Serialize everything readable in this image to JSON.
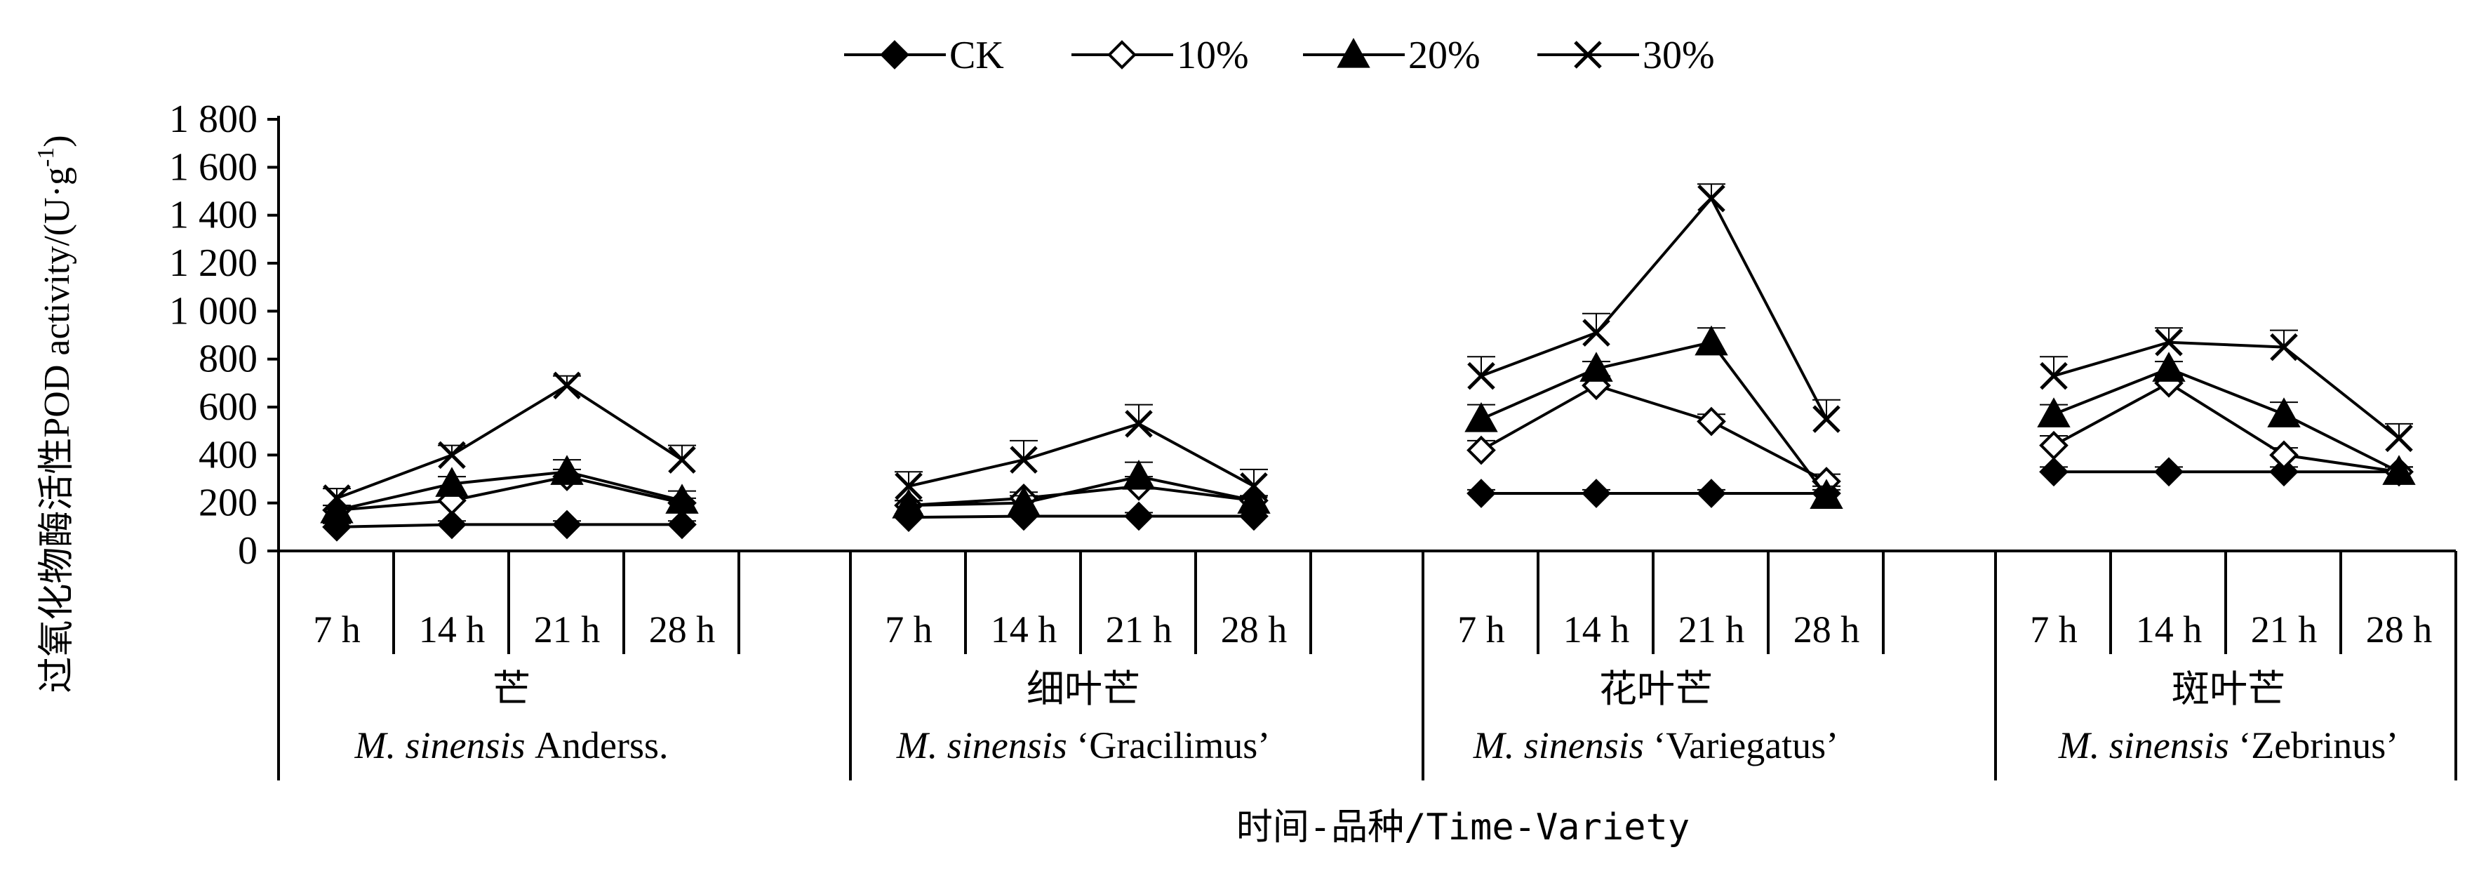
{
  "chart_data": {
    "type": "line",
    "ylabel": "过氧化物酶活性POD activity/(U·g",
    "ylabel_sup": "-1",
    "ylabel_close": ")",
    "xlabel": "时间-品种/Time-Variety",
    "ylim": [
      0,
      1800
    ],
    "yticks": [
      "0",
      "200",
      "400",
      "600",
      "800",
      "1 000",
      "1 200",
      "1 400",
      "1 600",
      "1 800"
    ],
    "time_labels": [
      "7 h",
      "14 h",
      "21 h",
      "28 h"
    ],
    "legend_position": "top-center",
    "groups": [
      {
        "name_cn": "芒",
        "name_latin_italic": "M. sinensis",
        "name_rest": "Anderss."
      },
      {
        "name_cn": "细叶芒",
        "name_latin_italic": "M.  sinensis",
        "name_rest": "‘Gracilimus’"
      },
      {
        "name_cn": "花叶芒",
        "name_latin_italic": "M.  sinensis",
        "name_rest": "‘Variegatus’"
      },
      {
        "name_cn": "斑叶芒",
        "name_latin_italic": "M. sinensis",
        "name_rest": "‘Zebrinus’"
      }
    ],
    "series": [
      {
        "name": "CK",
        "marker": "diamond-filled",
        "values": [
          [
            100,
            110,
            110,
            110
          ],
          [
            140,
            145,
            145,
            145
          ],
          [
            240,
            240,
            240,
            240
          ],
          [
            330,
            330,
            330,
            330
          ]
        ],
        "errors": [
          [
            15,
            15,
            15,
            15
          ],
          [
            15,
            15,
            15,
            15
          ],
          [
            15,
            15,
            15,
            15
          ],
          [
            20,
            20,
            20,
            20
          ]
        ]
      },
      {
        "name": "10%",
        "marker": "diamond-open",
        "values": [
          [
            170,
            210,
            310,
            200
          ],
          [
            190,
            220,
            270,
            210
          ],
          [
            420,
            690,
            540,
            290
          ],
          [
            440,
            700,
            400,
            330
          ]
        ],
        "errors": [
          [
            20,
            25,
            30,
            20
          ],
          [
            20,
            25,
            40,
            20
          ],
          [
            40,
            40,
            30,
            30
          ],
          [
            40,
            30,
            30,
            20
          ]
        ]
      },
      {
        "name": "20%",
        "marker": "triangle-filled",
        "values": [
          [
            170,
            280,
            330,
            210
          ],
          [
            190,
            200,
            310,
            210
          ],
          [
            550,
            760,
            870,
            230
          ],
          [
            570,
            760,
            570,
            330
          ]
        ],
        "errors": [
          [
            20,
            30,
            50,
            40
          ],
          [
            20,
            30,
            60,
            20
          ],
          [
            60,
            30,
            60,
            40
          ],
          [
            40,
            30,
            50,
            20
          ]
        ]
      },
      {
        "name": "30%",
        "marker": "cross",
        "values": [
          [
            220,
            400,
            690,
            380
          ],
          [
            270,
            380,
            530,
            270
          ],
          [
            730,
            910,
            1470,
            550
          ],
          [
            730,
            870,
            850,
            470
          ]
        ],
        "errors": [
          [
            40,
            40,
            40,
            60
          ],
          [
            60,
            80,
            80,
            70
          ],
          [
            80,
            80,
            60,
            80
          ],
          [
            80,
            60,
            70,
            60
          ]
        ]
      }
    ]
  }
}
